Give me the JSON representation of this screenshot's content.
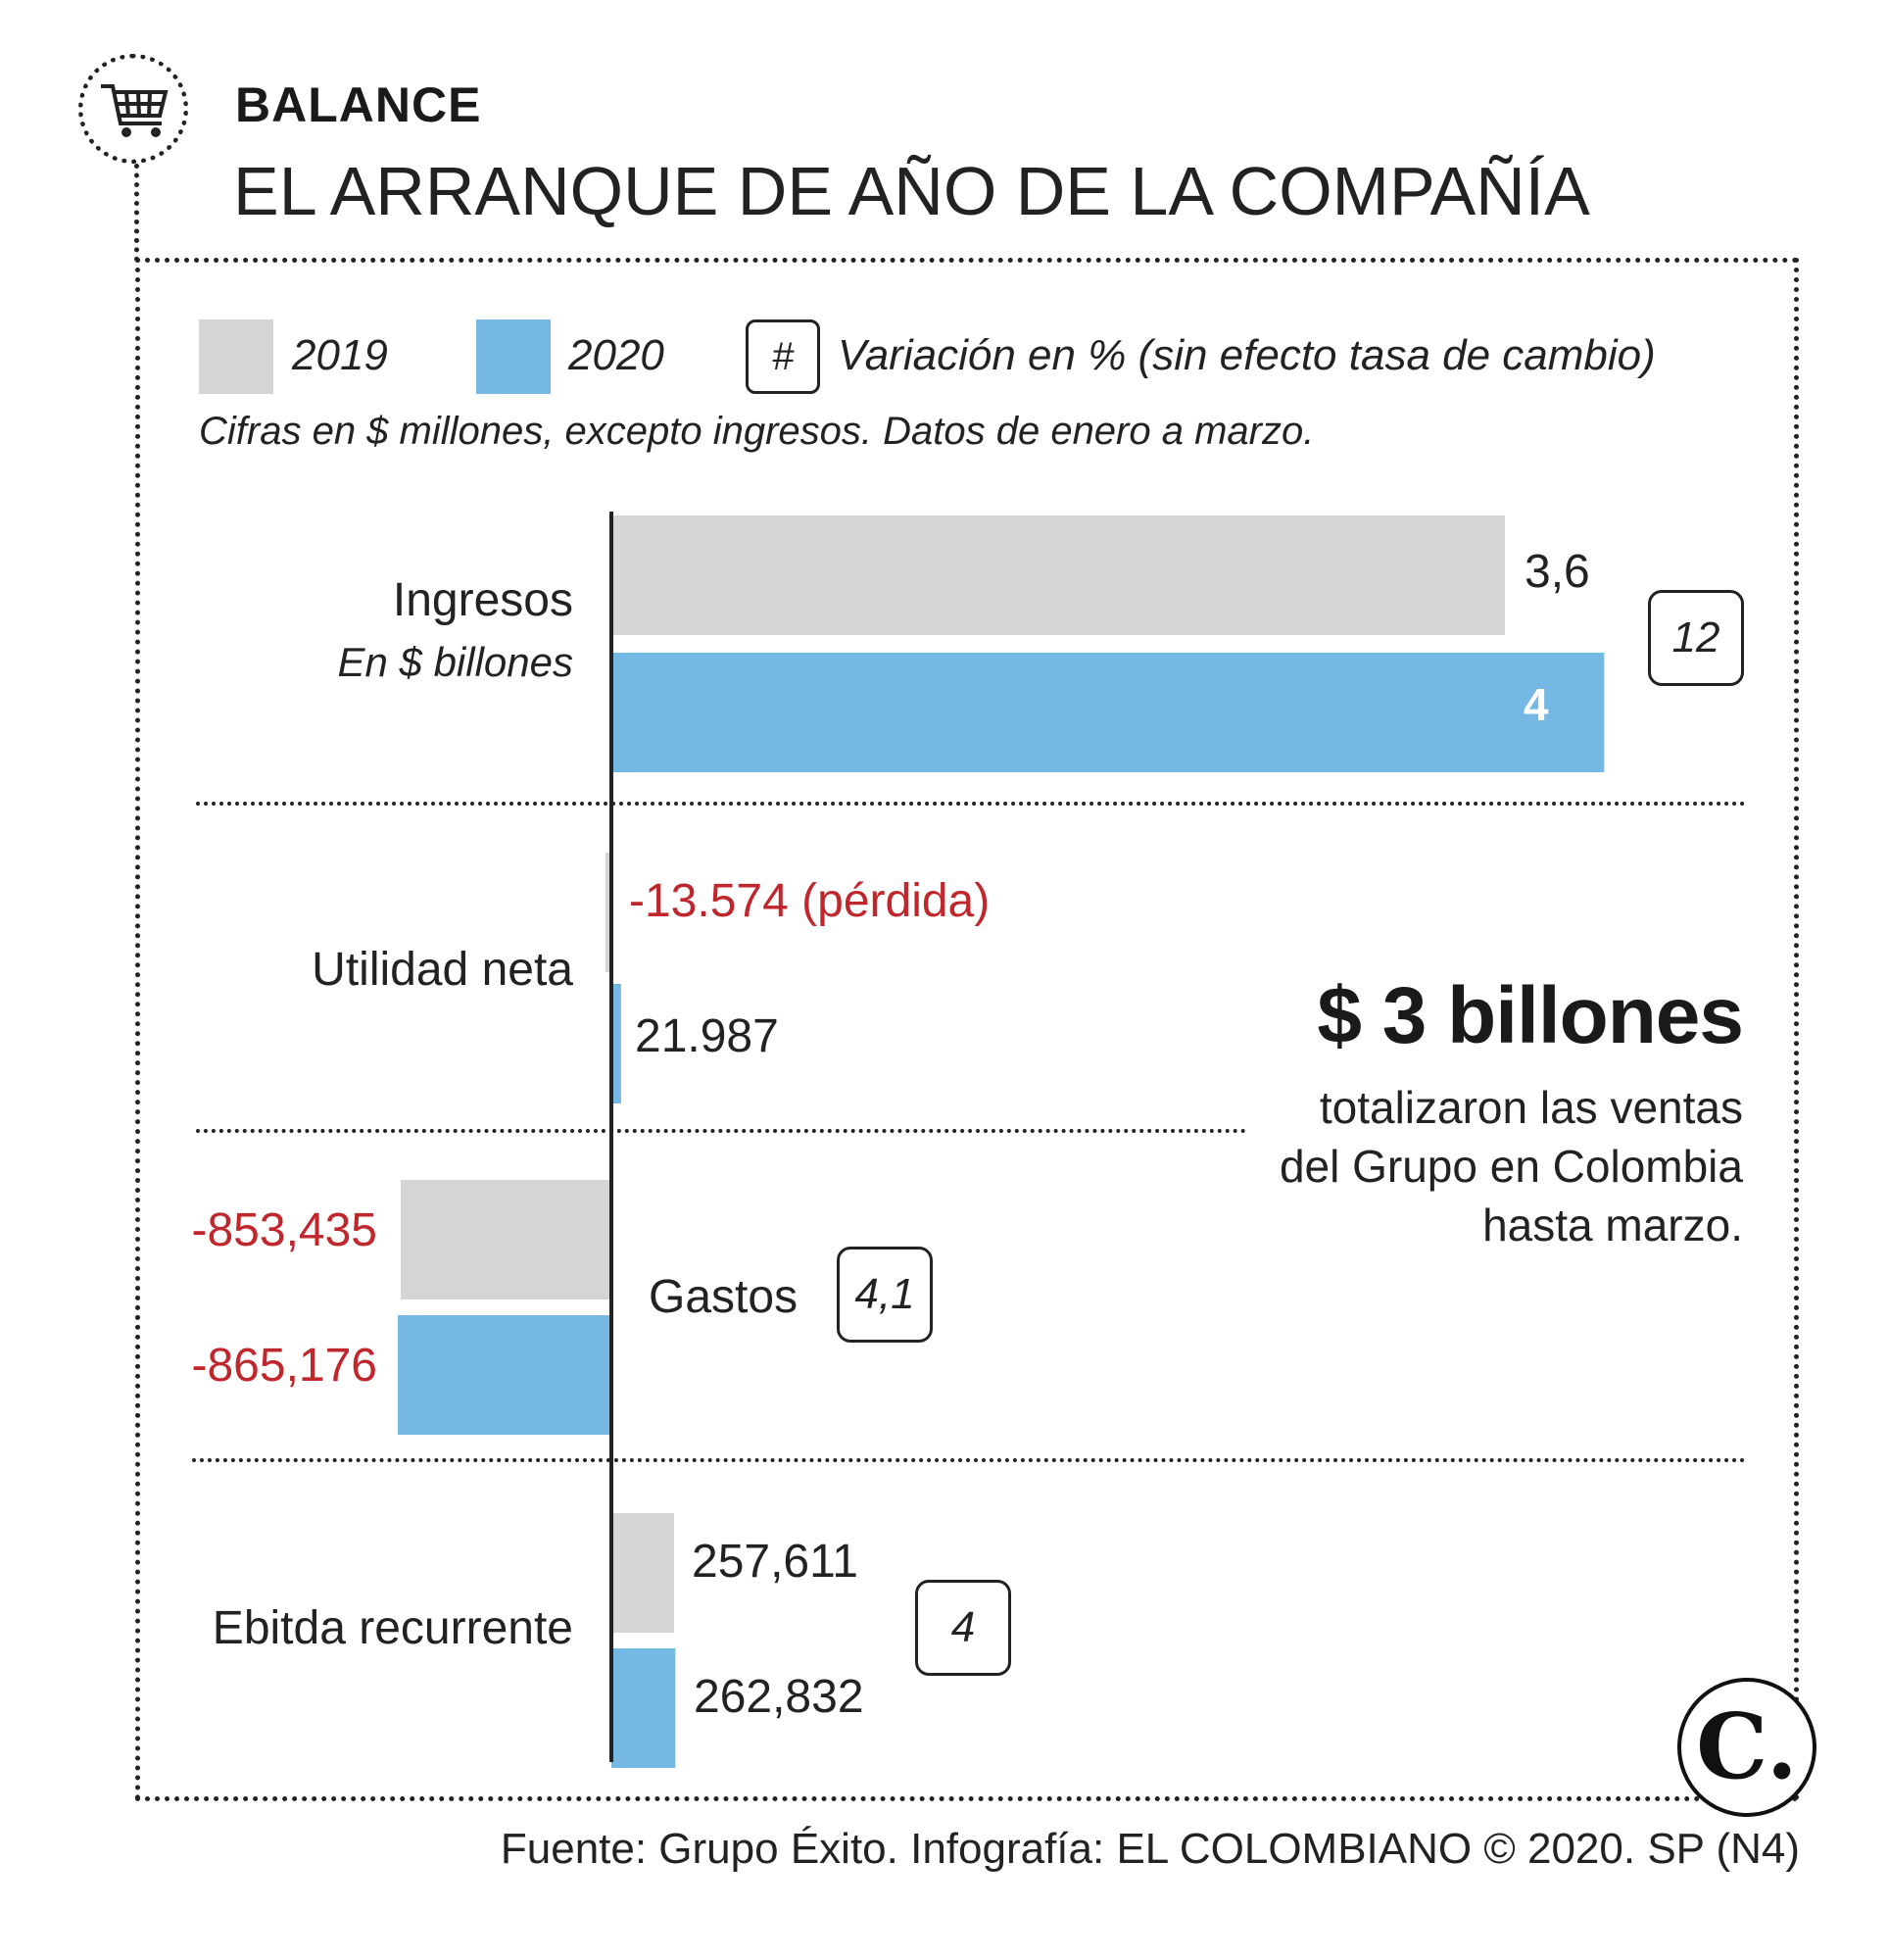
{
  "header": {
    "kicker": "BALANCE",
    "title": "EL ARRANQUE DE AÑO DE LA COMPAÑÍA"
  },
  "legend": {
    "items": [
      {
        "label": "2019",
        "color": "#d4d5d7"
      },
      {
        "label": "2020",
        "color": "#74b8e3"
      }
    ],
    "variation_symbol": "#",
    "variation_label": "Variación en % (sin efecto tasa de cambio)"
  },
  "note": "Cifras en $ millones, excepto ingresos. Datos de enero a marzo.",
  "chart_data": {
    "type": "bar",
    "orientation": "horizontal",
    "series_names": [
      "2019",
      "2020"
    ],
    "colors": {
      "2019": "#d4d5d7",
      "2020": "#74b8e3"
    },
    "groups": [
      {
        "category": "Ingresos",
        "subtitle": "En $ billones",
        "values": [
          3.6,
          4
        ],
        "labels": [
          "3,6",
          "4"
        ],
        "variation": "12"
      },
      {
        "category": "Utilidad neta",
        "subtitle": "",
        "values": [
          -13574,
          21987
        ],
        "labels": [
          "-13.574 (pérdida)",
          "21.987"
        ],
        "variation": ""
      },
      {
        "category": "Gastos",
        "subtitle": "",
        "values": [
          -853435,
          -865176
        ],
        "labels": [
          "-853,435",
          "-865,176"
        ],
        "variation": "4,1"
      },
      {
        "category": "Ebitda recurrente",
        "subtitle": "",
        "values": [
          257611,
          262832
        ],
        "labels": [
          "257,611",
          "262,832"
        ],
        "variation": "4"
      }
    ]
  },
  "highlight": {
    "value": "$ 3 billones",
    "description_lines": [
      "totalizaron las ventas",
      "del Grupo en Colombia",
      "hasta marzo."
    ]
  },
  "footer": {
    "source": "Fuente: Grupo Éxito. Infografía: EL COLOMBIANO © 2020. SP (N4)",
    "logo_text": "C."
  }
}
